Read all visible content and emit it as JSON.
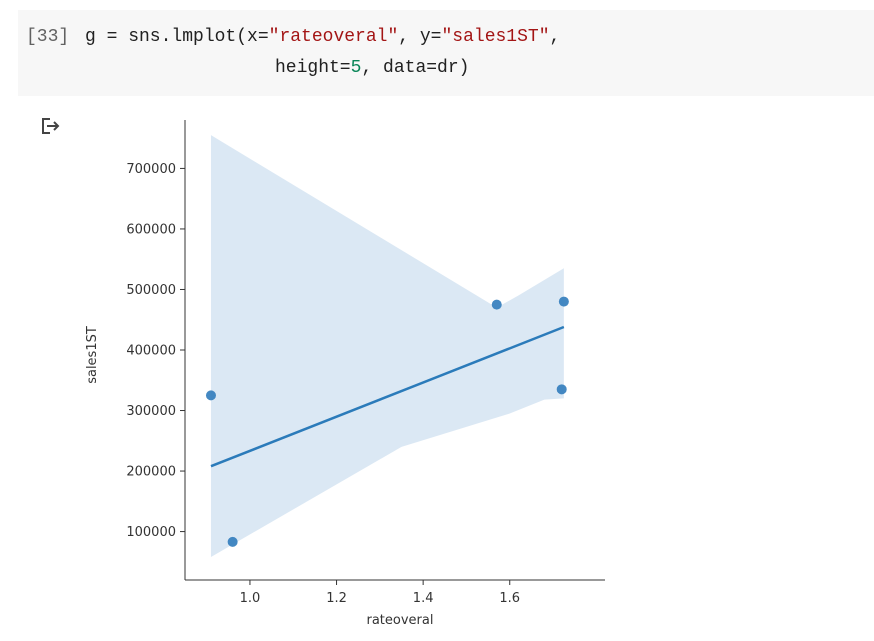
{
  "cell": {
    "prompt": "[33]",
    "line1": {
      "pre": "g = sns.lmplot(x=",
      "x_str": "\"rateoveral\"",
      "mid": ", y=",
      "y_str": "\"sales1ST\"",
      "post": ","
    },
    "line2": {
      "pre": "height=",
      "height_num": "5",
      "post": ", data=dr)"
    }
  },
  "output": {
    "icon": "output-redirect-icon"
  },
  "chart_data": {
    "type": "scatter",
    "title": "",
    "xlabel": "rateoveral",
    "ylabel": "sales1ST",
    "xlim": [
      0.85,
      1.82
    ],
    "ylim": [
      20000,
      780000
    ],
    "xticks": [
      1.0,
      1.2,
      1.4,
      1.6
    ],
    "xtick_labels": [
      "1.0",
      "1.2",
      "1.4",
      "1.6"
    ],
    "yticks": [
      100000,
      200000,
      300000,
      400000,
      500000,
      600000,
      700000
    ],
    "ytick_labels": [
      "100000",
      "200000",
      "300000",
      "400000",
      "500000",
      "600000",
      "700000"
    ],
    "points": [
      {
        "x": 0.91,
        "y": 325000
      },
      {
        "x": 0.96,
        "y": 83000
      },
      {
        "x": 1.57,
        "y": 475000
      },
      {
        "x": 1.72,
        "y": 335000
      },
      {
        "x": 1.725,
        "y": 480000
      }
    ],
    "regression": {
      "x": [
        0.91,
        1.725
      ],
      "y": [
        208000,
        438000
      ]
    },
    "ci_upper": [
      {
        "x": 0.91,
        "y": 755000
      },
      {
        "x": 1.57,
        "y": 470000
      },
      {
        "x": 1.62,
        "y": 490000
      },
      {
        "x": 1.725,
        "y": 535000
      }
    ],
    "ci_lower": [
      {
        "x": 0.91,
        "y": 58000
      },
      {
        "x": 1.35,
        "y": 240000
      },
      {
        "x": 1.6,
        "y": 295000
      },
      {
        "x": 1.68,
        "y": 318000
      },
      {
        "x": 1.725,
        "y": 320000
      }
    ],
    "colors": {
      "point": "#3a82bf",
      "line": "#2b7bba",
      "band": "#cfe0f0"
    },
    "grid": false,
    "legend": "none"
  }
}
